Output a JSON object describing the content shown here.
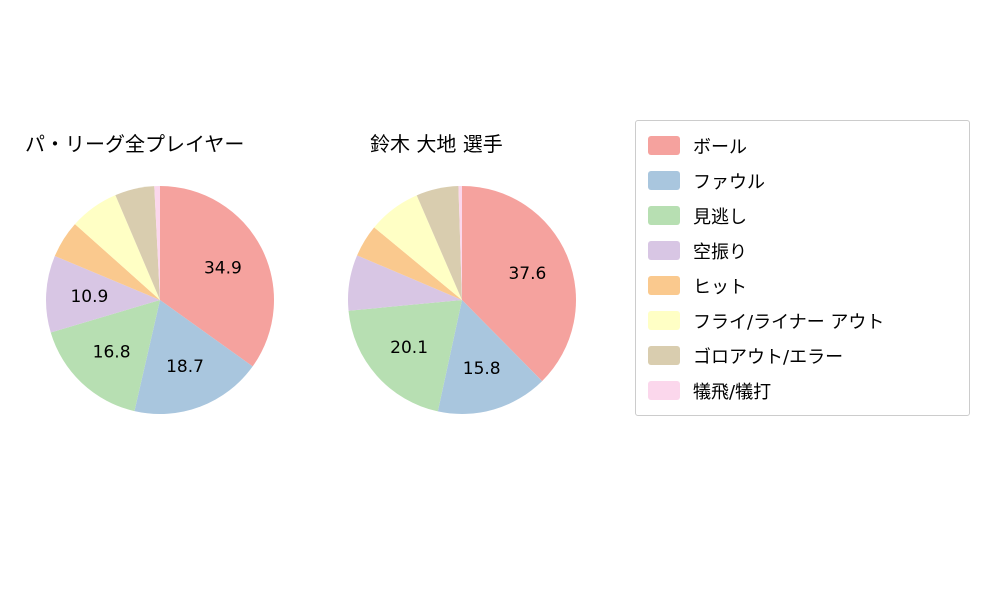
{
  "chart_data": [
    {
      "type": "pie",
      "title": "パ・リーグ全プレイヤー",
      "categories": [
        "ボール",
        "ファウル",
        "見逃し",
        "空振り",
        "ヒット",
        "フライ/ライナー アウト",
        "ゴロアウト/エラー",
        "犠飛/犠打"
      ],
      "values": [
        34.9,
        18.7,
        16.8,
        10.9,
        5.3,
        7.0,
        5.6,
        0.8
      ],
      "labeled_values": [
        34.9,
        18.7,
        16.8,
        10.9
      ],
      "colors": [
        "#f5a29e",
        "#a9c6de",
        "#b7dfb2",
        "#d8c6e4",
        "#fac98e",
        "#ffffc5",
        "#d9cdaf",
        "#fbd7ec"
      ],
      "start_angle_deg": 90,
      "direction": "clockwise",
      "label_threshold": 10
    },
    {
      "type": "pie",
      "title": "鈴木 大地  選手",
      "categories": [
        "ボール",
        "ファウル",
        "見逃し",
        "空振り",
        "ヒット",
        "フライ/ライナー アウト",
        "ゴロアウト/エラー",
        "犠飛/犠打"
      ],
      "values": [
        37.6,
        15.8,
        20.1,
        7.9,
        4.6,
        7.5,
        6.0,
        0.5
      ],
      "labeled_values": [
        37.6,
        15.8,
        20.1
      ],
      "colors": [
        "#f5a29e",
        "#a9c6de",
        "#b7dfb2",
        "#d8c6e4",
        "#fac98e",
        "#ffffc5",
        "#d9cdaf",
        "#fbd7ec"
      ],
      "start_angle_deg": 90,
      "direction": "clockwise",
      "label_threshold": 10
    }
  ],
  "legend": {
    "position": "right",
    "items": [
      {
        "label": "ボール",
        "color": "#f5a29e"
      },
      {
        "label": "ファウル",
        "color": "#a9c6de"
      },
      {
        "label": "見逃し",
        "color": "#b7dfb2"
      },
      {
        "label": "空振り",
        "color": "#d8c6e4"
      },
      {
        "label": "ヒット",
        "color": "#fac98e"
      },
      {
        "label": "フライ/ライナー アウト",
        "color": "#ffffc5"
      },
      {
        "label": "ゴロアウト/エラー",
        "color": "#d9cdaf"
      },
      {
        "label": "犠飛/犠打",
        "color": "#fbd7ec"
      }
    ]
  }
}
